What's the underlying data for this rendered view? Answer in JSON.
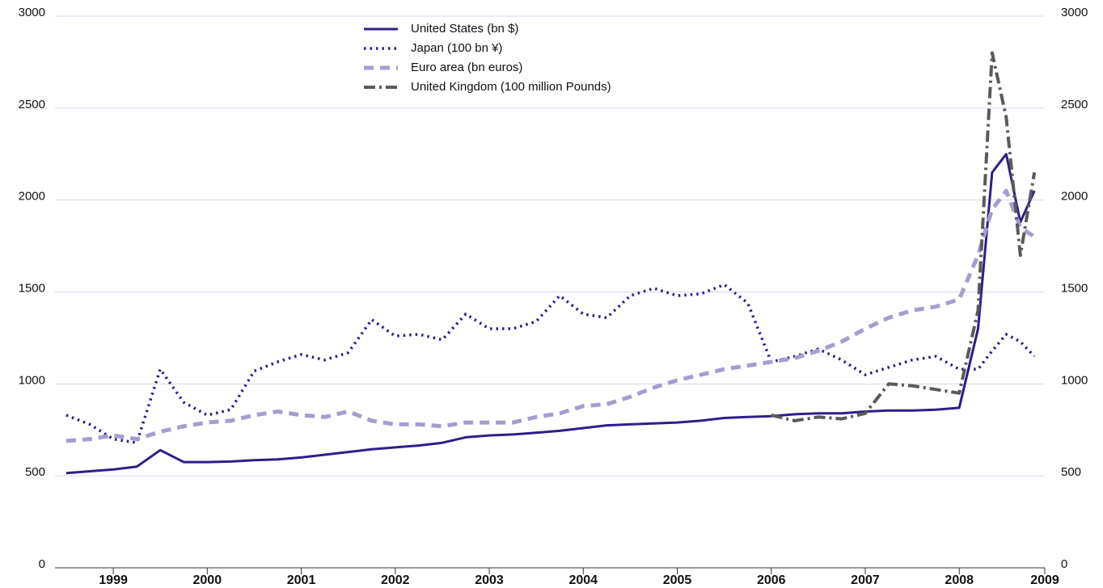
{
  "chart_data": {
    "type": "line",
    "x": [
      1999,
      1999.25,
      1999.5,
      1999.75,
      2000,
      2000.25,
      2000.5,
      2000.75,
      2001,
      2001.25,
      2001.5,
      2001.75,
      2002,
      2002.25,
      2002.5,
      2002.75,
      2003,
      2003.25,
      2003.5,
      2003.75,
      2004,
      2004.25,
      2004.5,
      2004.75,
      2005,
      2005.25,
      2005.5,
      2005.75,
      2006,
      2006.25,
      2006.5,
      2006.75,
      2007,
      2007.25,
      2007.5,
      2007.75,
      2008,
      2008.25,
      2008.5,
      2008.7,
      2008.85,
      2009,
      2009.15,
      2009.3
    ],
    "series": [
      {
        "name": "United States (bn $)",
        "color": "#2b1f8a",
        "style": "solid",
        "values": [
          515,
          525,
          535,
          550,
          640,
          575,
          575,
          578,
          585,
          590,
          600,
          615,
          630,
          645,
          655,
          665,
          680,
          710,
          720,
          725,
          735,
          745,
          760,
          775,
          780,
          785,
          790,
          800,
          815,
          820,
          825,
          835,
          840,
          840,
          850,
          855,
          855,
          860,
          870,
          1300,
          2150,
          2250,
          1880,
          2050
        ]
      },
      {
        "name": "Japan (100 bn ¥)",
        "color": "#2b1f8a",
        "style": "dotted",
        "values": [
          830,
          780,
          700,
          680,
          1080,
          900,
          830,
          860,
          1070,
          1120,
          1160,
          1130,
          1170,
          1350,
          1260,
          1270,
          1240,
          1380,
          1300,
          1300,
          1340,
          1480,
          1380,
          1360,
          1480,
          1520,
          1480,
          1490,
          1540,
          1440,
          1120,
          1150,
          1190,
          1130,
          1050,
          1090,
          1130,
          1150,
          1080,
          1080,
          1180,
          1270,
          1230,
          1150
        ]
      },
      {
        "name": "Euro area (bn euros)",
        "color": "#a99bd0",
        "style": "dashed",
        "values": [
          690,
          700,
          720,
          700,
          740,
          770,
          790,
          800,
          830,
          850,
          830,
          820,
          850,
          800,
          780,
          780,
          770,
          790,
          790,
          790,
          820,
          840,
          880,
          890,
          930,
          980,
          1020,
          1050,
          1080,
          1100,
          1120,
          1140,
          1180,
          1230,
          1300,
          1360,
          1400,
          1420,
          1460,
          1700,
          1950,
          2050,
          1850,
          1800
        ]
      },
      {
        "name": "United Kingdom (100 million Pounds)",
        "color": "#5a5a5a",
        "style": "dashdot",
        "values": [
          null,
          null,
          null,
          null,
          null,
          null,
          null,
          null,
          null,
          null,
          null,
          null,
          null,
          null,
          null,
          null,
          null,
          null,
          null,
          null,
          null,
          null,
          null,
          null,
          null,
          null,
          null,
          null,
          null,
          null,
          830,
          800,
          820,
          810,
          840,
          1000,
          990,
          970,
          950,
          1400,
          2800,
          2450,
          1700,
          2150
        ]
      }
    ],
    "xlim": [
      1998.88,
      2009.41
    ],
    "xticks": [
      {
        "value": 1999.5,
        "label": "1999"
      },
      {
        "value": 2000.5,
        "label": "2000"
      },
      {
        "value": 2001.5,
        "label": "2001"
      },
      {
        "value": 2002.5,
        "label": "2002"
      },
      {
        "value": 2003.5,
        "label": "2003"
      },
      {
        "value": 2004.5,
        "label": "2004"
      },
      {
        "value": 2005.5,
        "label": "2005"
      },
      {
        "value": 2006.5,
        "label": "2006"
      },
      {
        "value": 2007.5,
        "label": "2007"
      },
      {
        "value": 2008.5,
        "label": "2008"
      },
      {
        "value": 2009.41,
        "label": "2009"
      }
    ],
    "ylim": [
      0,
      3000
    ],
    "yticks": [
      0,
      500,
      1000,
      1500,
      2000,
      2500,
      3000
    ],
    "y2lim": [
      0,
      3000
    ],
    "y2ticks": [
      0,
      500,
      1000,
      1500,
      2000,
      2500,
      3000
    ],
    "grid": true
  }
}
